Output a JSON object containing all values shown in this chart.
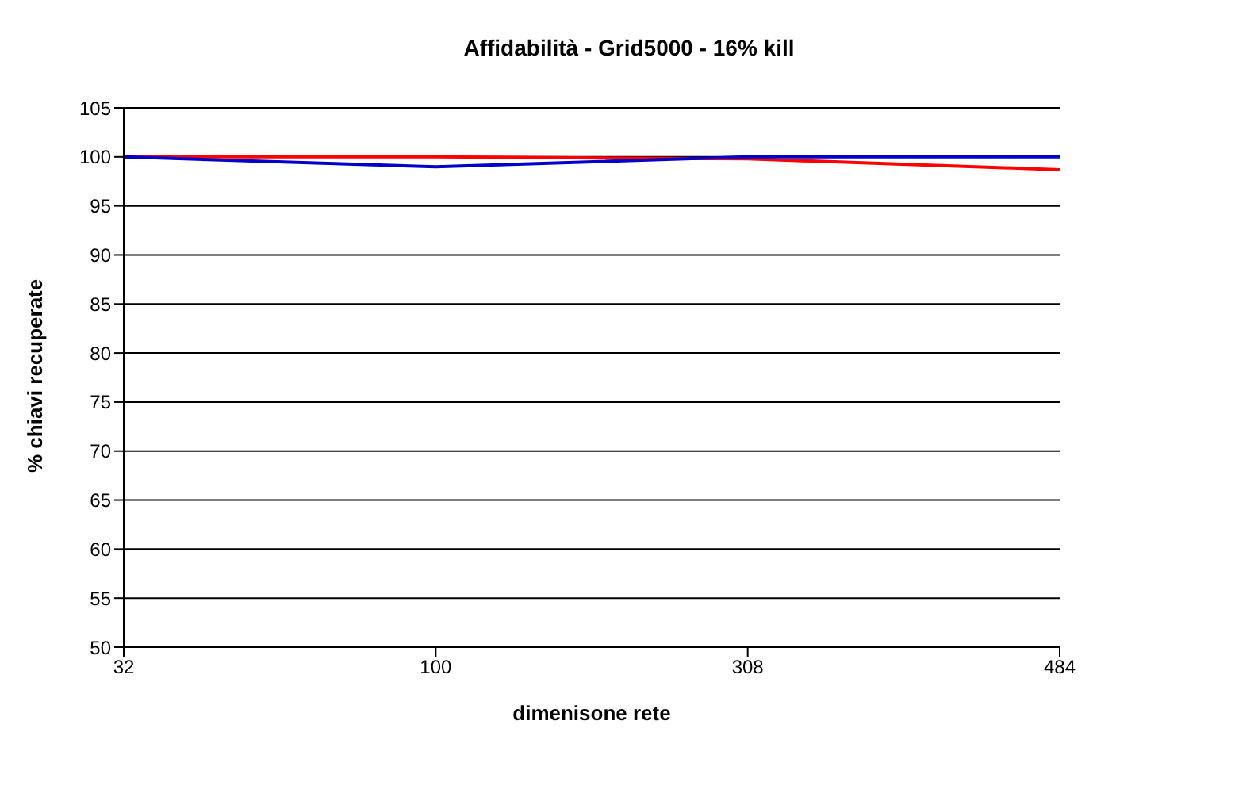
{
  "chart_data": {
    "type": "line",
    "title": "Affidabilità - Grid5000 - 16% kill",
    "xlabel": "dimenisone rete",
    "ylabel": "% chiavi recuperate",
    "categories": [
      "32",
      "100",
      "308",
      "484"
    ],
    "series": [
      {
        "color": "#ff0000",
        "values": [
          100,
          100,
          99.8,
          98.7
        ]
      },
      {
        "color": "#0000cc",
        "values": [
          100,
          99,
          100,
          100
        ]
      }
    ],
    "ylim": [
      50,
      105
    ],
    "yticks": [
      50,
      55,
      60,
      65,
      70,
      75,
      80,
      85,
      90,
      95,
      100,
      105
    ],
    "grid": "y",
    "marker": "none"
  }
}
